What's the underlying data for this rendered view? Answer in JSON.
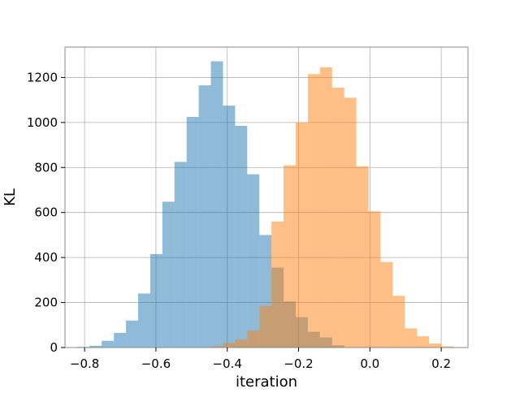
{
  "chart_data": {
    "type": "bar",
    "title": "",
    "xlabel": "iteration",
    "ylabel": "KL",
    "xlim": [
      -0.855,
      0.275
    ],
    "ylim": [
      0,
      1335
    ],
    "grid": true,
    "x_ticks": [
      -0.8,
      -0.6,
      -0.4,
      -0.2,
      0.0,
      0.2
    ],
    "x_tick_labels": [
      "−0.8",
      "−0.6",
      "−0.4",
      "−0.2",
      "0.0",
      "0.2"
    ],
    "y_ticks": [
      0,
      200,
      400,
      600,
      800,
      1000,
      1200
    ],
    "y_tick_labels": [
      "0",
      "200",
      "400",
      "600",
      "800",
      "1000",
      "1200"
    ],
    "series": [
      {
        "color": "#1f77b4",
        "opacity": 0.5,
        "bin_edges": [
          -0.82,
          -0.786,
          -0.752,
          -0.718,
          -0.684,
          -0.65,
          -0.616,
          -0.582,
          -0.548,
          -0.514,
          -0.48,
          -0.446,
          -0.412,
          -0.378,
          -0.344,
          -0.31,
          -0.276,
          -0.242,
          -0.208,
          -0.174,
          -0.14,
          -0.106,
          -0.072
        ],
        "values": [
          3,
          8,
          30,
          65,
          120,
          240,
          415,
          648,
          825,
          1025,
          1165,
          1272,
          1075,
          985,
          770,
          500,
          355,
          205,
          135,
          70,
          45,
          10
        ]
      },
      {
        "color": "#ff7f0e",
        "opacity": 0.5,
        "bin_edges": [
          -0.446,
          -0.412,
          -0.378,
          -0.344,
          -0.31,
          -0.276,
          -0.242,
          -0.208,
          -0.174,
          -0.14,
          -0.106,
          -0.072,
          -0.038,
          -0.004,
          0.03,
          0.064,
          0.098,
          0.132,
          0.166,
          0.2,
          0.234
        ],
        "values": [
          5,
          20,
          35,
          75,
          185,
          560,
          810,
          1000,
          1215,
          1245,
          1155,
          1110,
          805,
          605,
          380,
          230,
          85,
          50,
          18,
          5
        ]
      }
    ]
  }
}
